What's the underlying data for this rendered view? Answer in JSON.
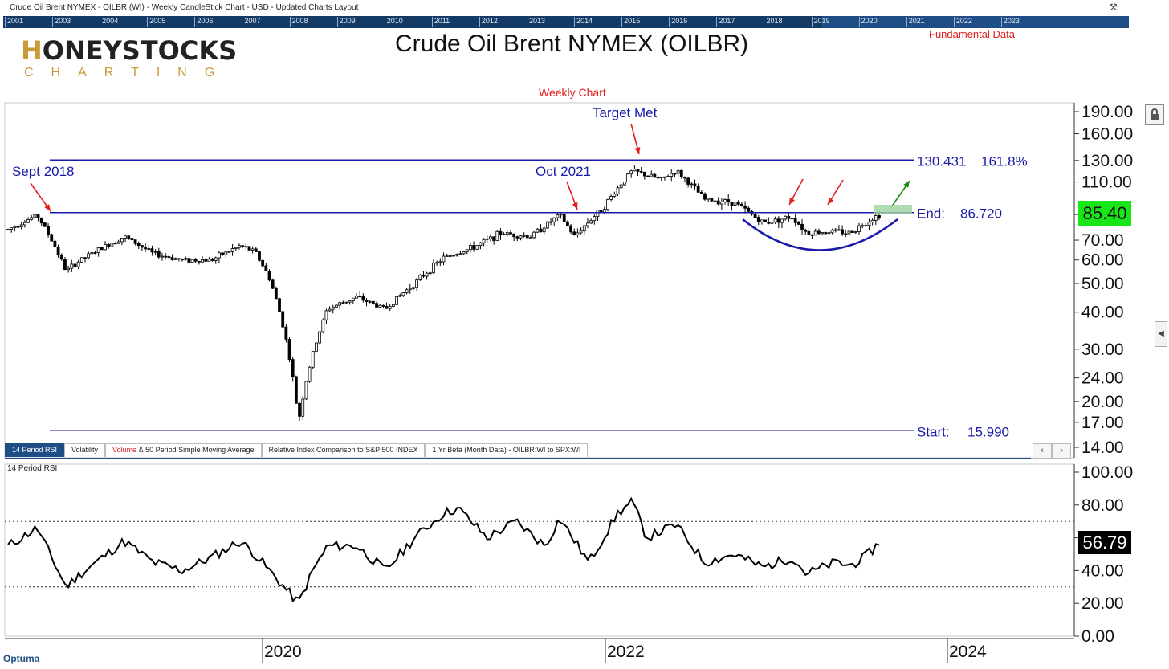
{
  "window": {
    "title": "Crude Oil Brent NYMEX - OILBR (WI) - Weekly CandleStick Chart - USD - Updated Charts Layout",
    "pin_icon": "pin-icon"
  },
  "timeline": {
    "years": [
      "2001",
      "2003",
      "2004",
      "2005",
      "2006",
      "2007",
      "2008",
      "2009",
      "2010",
      "2011",
      "2012",
      "2013",
      "2014",
      "2015",
      "2016",
      "2017",
      "2018",
      "2019",
      "2020",
      "2021",
      "2022",
      "2023"
    ]
  },
  "logo": {
    "main_first": "H",
    "main_rest": "ONEYSTOCKS",
    "sub": "CHARTING"
  },
  "header": {
    "title": "Crude Oil Brent NYMEX (OILBR)",
    "fundamental_link": "Fundamental Data",
    "weekly_label": "Weekly Chart"
  },
  "price_panel": {
    "last_price": "85.40",
    "last_price_color": "#19e619",
    "y_ticks": [
      "190.00",
      "160.00",
      "130.00",
      "110.00",
      "85.40",
      "70.00",
      "60.00",
      "50.00",
      "40.00",
      "30.00",
      "24.00",
      "20.00",
      "17.00",
      "14.00"
    ]
  },
  "annotations": {
    "sept_2018": "Sept 2018",
    "oct_2021": "Oct 2021",
    "target_met": "Target Met",
    "fib_value": "130.431",
    "fib_pct": "161.8%",
    "end_label": "End:",
    "end_value": "86.720",
    "start_label": "Start:",
    "start_value": "15.990"
  },
  "tabs": {
    "items": [
      {
        "label": "14 Period RSI",
        "active": true
      },
      {
        "label": "Volatility"
      },
      {
        "label_red": "Volume",
        "label": " & 50 Period Simple Moving Average"
      },
      {
        "label": "Relative Index Comparison to S&P 500 INDEX"
      },
      {
        "label": "1 Yr Beta (Month Data) - OILBR:WI to SPX:WI"
      }
    ],
    "prev": "‹",
    "next": "›"
  },
  "rsi_panel": {
    "label": "14 Period RSI",
    "last_value": "56.79",
    "y_ticks": [
      "100.00",
      "80.00",
      "60.00",
      "40.00",
      "20.00",
      "0.00"
    ],
    "overbought": 70,
    "oversold": 30
  },
  "x_axis": {
    "labels": [
      "2020",
      "2022",
      "2024"
    ]
  },
  "footer": {
    "brand": "Optuma"
  },
  "chart_data": {
    "type": "candlestick",
    "title": "Crude Oil Brent NYMEX (OILBR)",
    "subtitle": "Weekly Chart",
    "y_scale": "log",
    "ylim": [
      14,
      190
    ],
    "x_labels": [
      "2020",
      "2022",
      "2024"
    ],
    "levels": [
      {
        "label": "Start:",
        "value": 15.99
      },
      {
        "label": "End:",
        "value": 86.72
      },
      {
        "label": "161.8%",
        "value": 130.431
      }
    ],
    "price_path": [
      [
        "2018-08",
        76
      ],
      [
        "2018-10",
        85
      ],
      [
        "2018-12",
        55
      ],
      [
        "2019-01",
        60
      ],
      [
        "2019-04",
        72
      ],
      [
        "2019-06",
        63
      ],
      [
        "2019-08",
        60
      ],
      [
        "2019-10",
        60
      ],
      [
        "2019-12",
        67
      ],
      [
        "2020-01",
        64
      ],
      [
        "2020-02",
        52
      ],
      [
        "2020-03",
        35
      ],
      [
        "2020-04",
        17
      ],
      [
        "2020-05",
        29
      ],
      [
        "2020-06",
        41
      ],
      [
        "2020-08",
        45
      ],
      [
        "2020-10",
        41
      ],
      [
        "2020-12",
        50
      ],
      [
        "2021-02",
        61
      ],
      [
        "2021-04",
        66
      ],
      [
        "2021-06",
        74
      ],
      [
        "2021-08",
        72
      ],
      [
        "2021-10",
        85
      ],
      [
        "2021-11",
        72
      ],
      [
        "2022-01",
        90
      ],
      [
        "2022-03",
        120
      ],
      [
        "2022-05",
        112
      ],
      [
        "2022-06",
        120
      ],
      [
        "2022-08",
        96
      ],
      [
        "2022-10",
        94
      ],
      [
        "2022-12",
        80
      ],
      [
        "2023-02",
        84
      ],
      [
        "2023-03",
        74
      ],
      [
        "2023-05",
        75
      ],
      [
        "2023-06",
        74
      ],
      [
        "2023-07",
        80
      ],
      [
        "2023-08",
        85.4
      ]
    ],
    "rsi": {
      "name": "14 Period RSI",
      "last": 56.79,
      "path": [
        [
          "2018-08",
          55
        ],
        [
          "2018-10",
          66
        ],
        [
          "2018-12",
          30
        ],
        [
          "2019-01",
          38
        ],
        [
          "2019-04",
          58
        ],
        [
          "2019-06",
          45
        ],
        [
          "2019-08",
          40
        ],
        [
          "2019-10",
          48
        ],
        [
          "2019-12",
          58
        ],
        [
          "2020-01",
          50
        ],
        [
          "2020-03",
          30
        ],
        [
          "2020-04",
          20
        ],
        [
          "2020-05",
          40
        ],
        [
          "2020-06",
          55
        ],
        [
          "2020-08",
          55
        ],
        [
          "2020-10",
          40
        ],
        [
          "2020-12",
          60
        ],
        [
          "2021-02",
          75
        ],
        [
          "2021-03",
          78
        ],
        [
          "2021-05",
          60
        ],
        [
          "2021-07",
          70
        ],
        [
          "2021-09",
          55
        ],
        [
          "2021-10",
          72
        ],
        [
          "2021-12",
          45
        ],
        [
          "2022-02",
          75
        ],
        [
          "2022-03",
          82
        ],
        [
          "2022-04",
          60
        ],
        [
          "2022-06",
          68
        ],
        [
          "2022-08",
          45
        ],
        [
          "2022-10",
          50
        ],
        [
          "2022-12",
          42
        ],
        [
          "2023-02",
          48
        ],
        [
          "2023-03",
          38
        ],
        [
          "2023-05",
          45
        ],
        [
          "2023-06",
          43
        ],
        [
          "2023-07",
          48
        ],
        [
          "2023-08",
          56.79
        ]
      ]
    }
  }
}
